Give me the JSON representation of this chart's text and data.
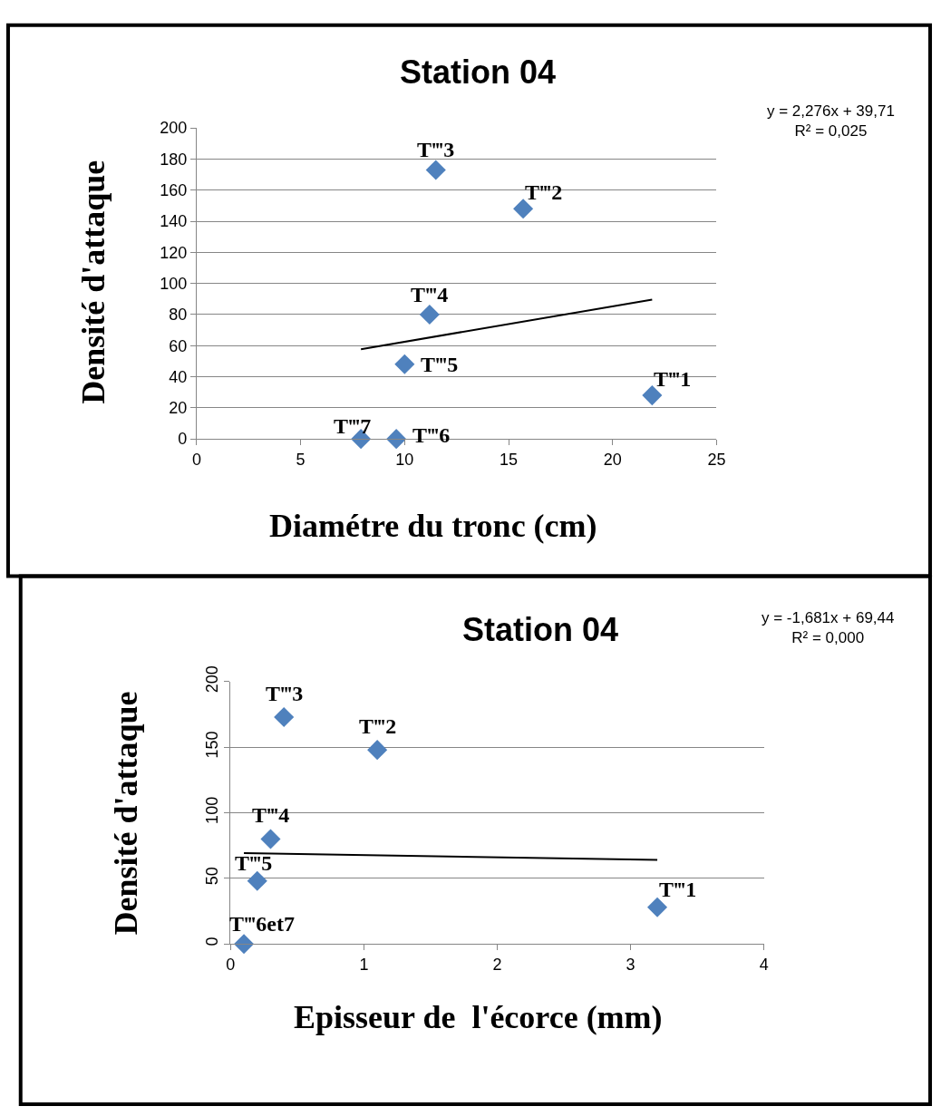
{
  "chart_data": [
    {
      "type": "scatter",
      "title": "Station 04",
      "xlabel": "Diamétre du tronc (cm)",
      "ylabel": "Densité d'attaque",
      "grid": "y",
      "xlim": [
        0,
        25
      ],
      "xticks": [
        0,
        5,
        10,
        15,
        20,
        25
      ],
      "ylim": [
        0,
        200
      ],
      "yticks": [
        0,
        20,
        40,
        60,
        80,
        100,
        120,
        140,
        160,
        180,
        200
      ],
      "series": [
        {
          "marker": "diamond",
          "color": "#4f81bd",
          "x": [
            21.9,
            15.7,
            11.5,
            11.2,
            10.0,
            9.6,
            7.9
          ],
          "values": [
            28,
            148,
            173,
            80,
            48,
            0,
            0
          ]
        },
        {
          "type": "line",
          "marker": "none",
          "color": "#000000",
          "x": [
            7.9,
            21.9
          ],
          "values": [
            57.7,
            89.6
          ]
        }
      ],
      "annotations": [
        {
          "text": "T‴1",
          "x": 21.9,
          "y": 28
        },
        {
          "text": "T‴2",
          "x": 15.7,
          "y": 148
        },
        {
          "text": "T‴3",
          "x": 11.5,
          "y": 173
        },
        {
          "text": "T‴4",
          "x": 11.2,
          "y": 80
        },
        {
          "text": "T‴5",
          "x": 10.0,
          "y": 48
        },
        {
          "text": "T‴6",
          "x": 9.6,
          "y": 0
        },
        {
          "text": "T‴7",
          "x": 7.9,
          "y": 0
        },
        "y = 2,276x + 39,71",
        "R² = 0,025"
      ]
    },
    {
      "type": "scatter",
      "title": "Station 04",
      "xlabel": "Episseur de  l'écorce (mm)",
      "ylabel": "Densité d'attaque",
      "grid": "y",
      "xlim": [
        0,
        4
      ],
      "xticks": [
        0,
        1,
        2,
        3,
        4
      ],
      "ylim": [
        0,
        200
      ],
      "yticks": [
        0,
        50,
        100,
        150,
        200
      ],
      "series": [
        {
          "marker": "diamond",
          "color": "#4f81bd",
          "x": [
            3.2,
            1.1,
            0.4,
            0.3,
            0.2,
            0.1
          ],
          "values": [
            28,
            148,
            173,
            80,
            48,
            0
          ]
        },
        {
          "type": "line",
          "marker": "none",
          "color": "#000000",
          "x": [
            0.1,
            3.2
          ],
          "values": [
            69.3,
            64.1
          ]
        }
      ],
      "annotations": [
        {
          "text": "T‴1",
          "x": 3.2,
          "y": 28
        },
        {
          "text": "T‴2",
          "x": 1.1,
          "y": 148
        },
        {
          "text": "T‴3",
          "x": 0.4,
          "y": 173
        },
        {
          "text": "T‴4",
          "x": 0.3,
          "y": 80
        },
        {
          "text": "T‴5",
          "x": 0.2,
          "y": 48
        },
        {
          "text": "T‴6et7",
          "x": 0.1,
          "y": 0
        },
        "y = -1,681x + 69,44",
        "R² = 0,000"
      ]
    }
  ]
}
